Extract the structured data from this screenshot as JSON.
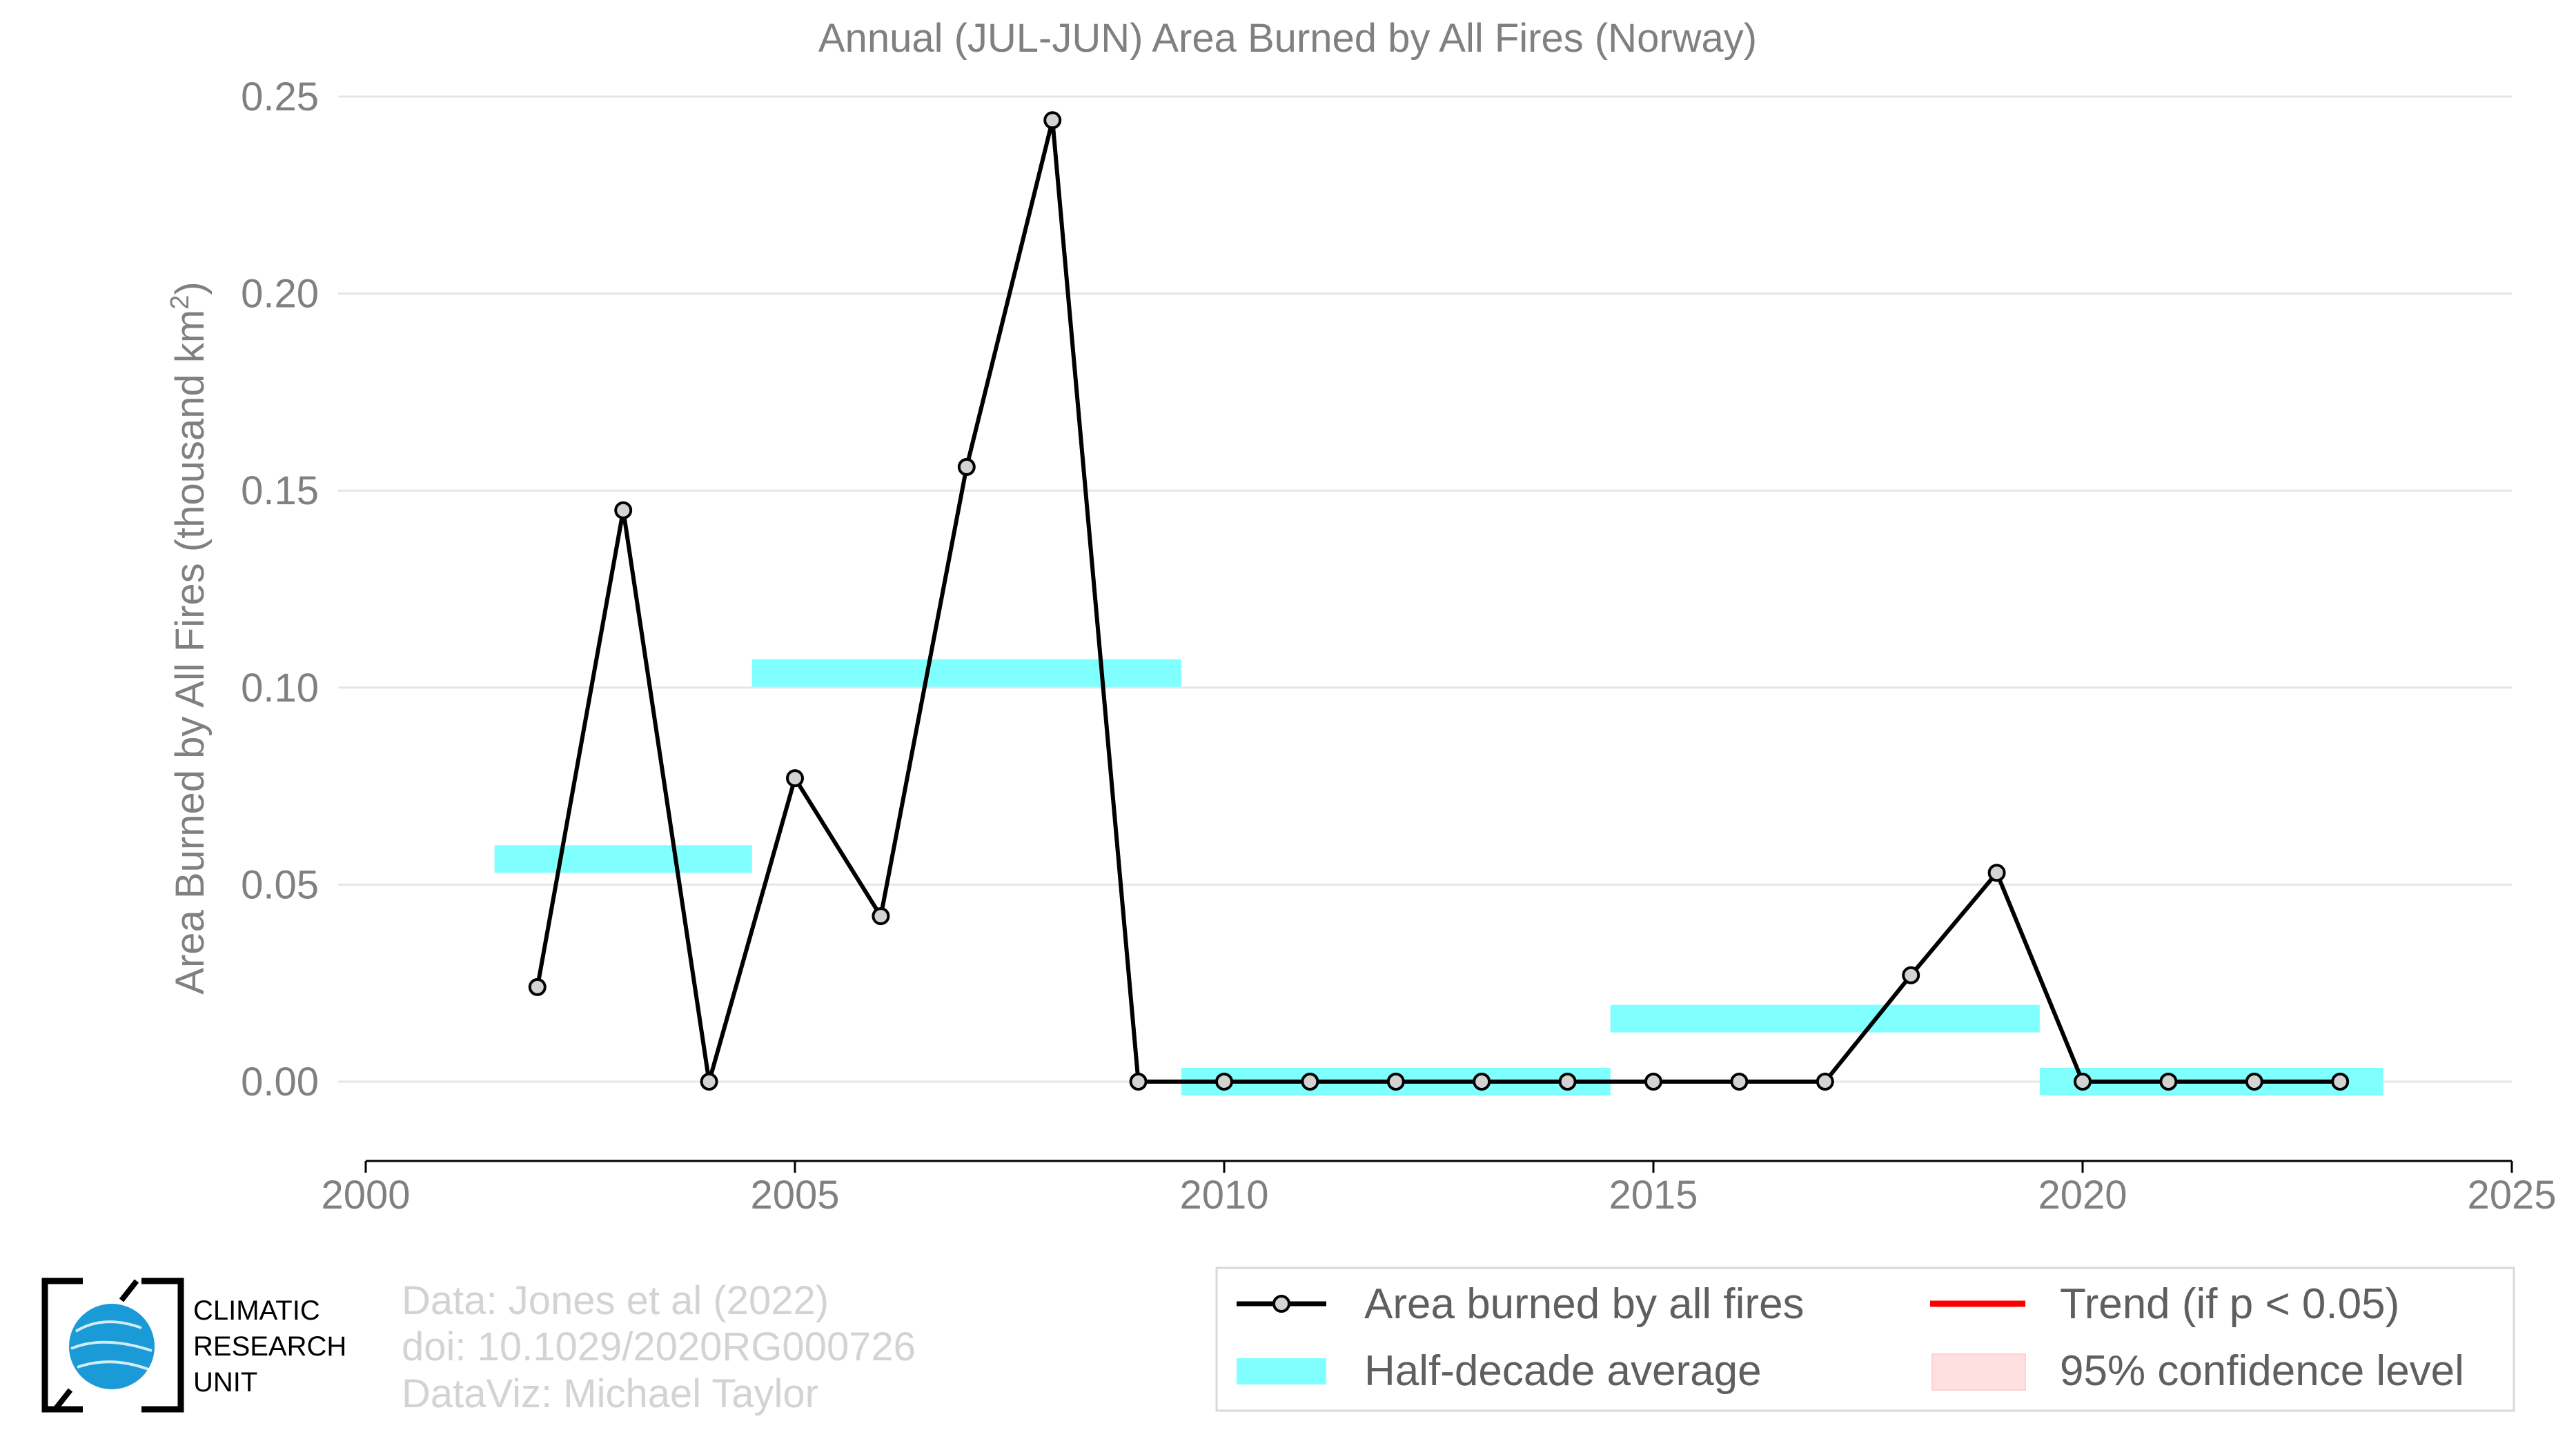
{
  "chart_data": {
    "type": "line",
    "title": "Annual (JUL-JUN) Area Burned by All Fires (Norway)",
    "ylabel": "Area Burned by All Fires (thousand km",
    "ylabel_sup": "2",
    "ylabel_close": ")",
    "xlim": [
      2000,
      2025
    ],
    "ylim": [
      -0.02,
      0.25
    ],
    "x_ticks": [
      {
        "value": 2000,
        "label": "2000"
      },
      {
        "value": 2005,
        "label": "2005"
      },
      {
        "value": 2010,
        "label": "2010"
      },
      {
        "value": 2015,
        "label": "2015"
      },
      {
        "value": 2020,
        "label": "2020"
      },
      {
        "value": 2025,
        "label": "2025"
      }
    ],
    "y_ticks": [
      {
        "value": 0.0,
        "label": "0.00"
      },
      {
        "value": 0.05,
        "label": "0.05"
      },
      {
        "value": 0.1,
        "label": "0.10"
      },
      {
        "value": 0.15,
        "label": "0.15"
      },
      {
        "value": 0.2,
        "label": "0.20"
      },
      {
        "value": 0.25,
        "label": "0.25"
      }
    ],
    "grid": "horizontal",
    "series": [
      {
        "name": "Area burned by all fires",
        "color": "#000000",
        "marker_fill": "#d3d3d3",
        "points": [
          {
            "x": 2002,
            "y": 0.024
          },
          {
            "x": 2003,
            "y": 0.145
          },
          {
            "x": 2004,
            "y": 0.0
          },
          {
            "x": 2005,
            "y": 0.077
          },
          {
            "x": 2006,
            "y": 0.042
          },
          {
            "x": 2007,
            "y": 0.156
          },
          {
            "x": 2008,
            "y": 0.244
          },
          {
            "x": 2009,
            "y": 0.0
          },
          {
            "x": 2010,
            "y": 0.0
          },
          {
            "x": 2011,
            "y": 0.0
          },
          {
            "x": 2012,
            "y": 0.0
          },
          {
            "x": 2013,
            "y": 0.0
          },
          {
            "x": 2014,
            "y": 0.0
          },
          {
            "x": 2015,
            "y": 0.0
          },
          {
            "x": 2016,
            "y": 0.0
          },
          {
            "x": 2017,
            "y": 0.0
          },
          {
            "x": 2018,
            "y": 0.027
          },
          {
            "x": 2019,
            "y": 0.053
          },
          {
            "x": 2020,
            "y": 0.0
          },
          {
            "x": 2021,
            "y": 0.0
          },
          {
            "x": 2022,
            "y": 0.0
          },
          {
            "x": 2023,
            "y": 0.0
          }
        ]
      }
    ],
    "half_decade_averages": {
      "name": "Half-decade average",
      "color": "#80ffff",
      "segments": [
        {
          "x_start": 2001.5,
          "x_end": 2004.5,
          "y": 0.0565
        },
        {
          "x_start": 2004.5,
          "x_end": 2009.5,
          "y": 0.1037
        },
        {
          "x_start": 2009.5,
          "x_end": 2014.5,
          "y": 0.0
        },
        {
          "x_start": 2014.5,
          "x_end": 2019.5,
          "y": 0.016
        },
        {
          "x_start": 2019.5,
          "x_end": 2023.5,
          "y": 0.0
        }
      ]
    },
    "legend": {
      "placement": "bottom-right",
      "entries": [
        {
          "label": "Area burned by all fires",
          "kind": "line-marker",
          "color": "#000000"
        },
        {
          "label": "Trend (if p < 0.05)",
          "kind": "line",
          "color": "#ff0000"
        },
        {
          "label": "Half-decade average",
          "kind": "band",
          "color": "#80ffff"
        },
        {
          "label": "95% confidence level",
          "kind": "band",
          "color": "#ffe0e0"
        }
      ]
    }
  },
  "credits": {
    "line1": "Data: Jones et al (2022)",
    "line2": "doi: 10.1029/2020RG000726",
    "line3": "DataViz: Michael Taylor"
  },
  "logo": {
    "line1": "CLIMATIC",
    "line2": "RESEARCH",
    "line3": "UNIT",
    "accent": "#1a9ad6"
  }
}
